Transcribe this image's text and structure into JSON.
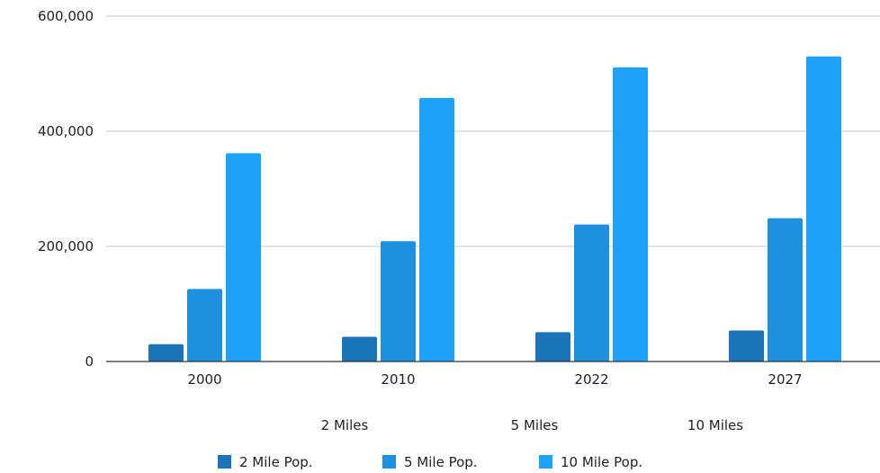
{
  "chart_data": {
    "type": "bar",
    "categories": [
      "2000",
      "2010",
      "2022",
      "2027"
    ],
    "series": [
      {
        "name": "2 Mile Pop.",
        "values": [
          30000,
          43000,
          51000,
          54000
        ]
      },
      {
        "name": "5 Mile Pop.",
        "values": [
          126000,
          209000,
          238000,
          249000
        ]
      },
      {
        "name": "10 Mile Pop.",
        "values": [
          362000,
          458000,
          511000,
          530000
        ]
      }
    ],
    "y_ticks": [
      "0",
      "200,000",
      "400,000",
      "600,000"
    ],
    "ylim": [
      0,
      600000
    ],
    "grid": true,
    "legend_position": "bottom",
    "radius_labels": [
      "2 Miles",
      "5 Miles",
      "10 Miles"
    ],
    "colors": [
      "#1a74b7",
      "#1e90de",
      "#1ea2f8"
    ],
    "gridline_color": "#c8c8c8",
    "axis_color": "#333333"
  }
}
